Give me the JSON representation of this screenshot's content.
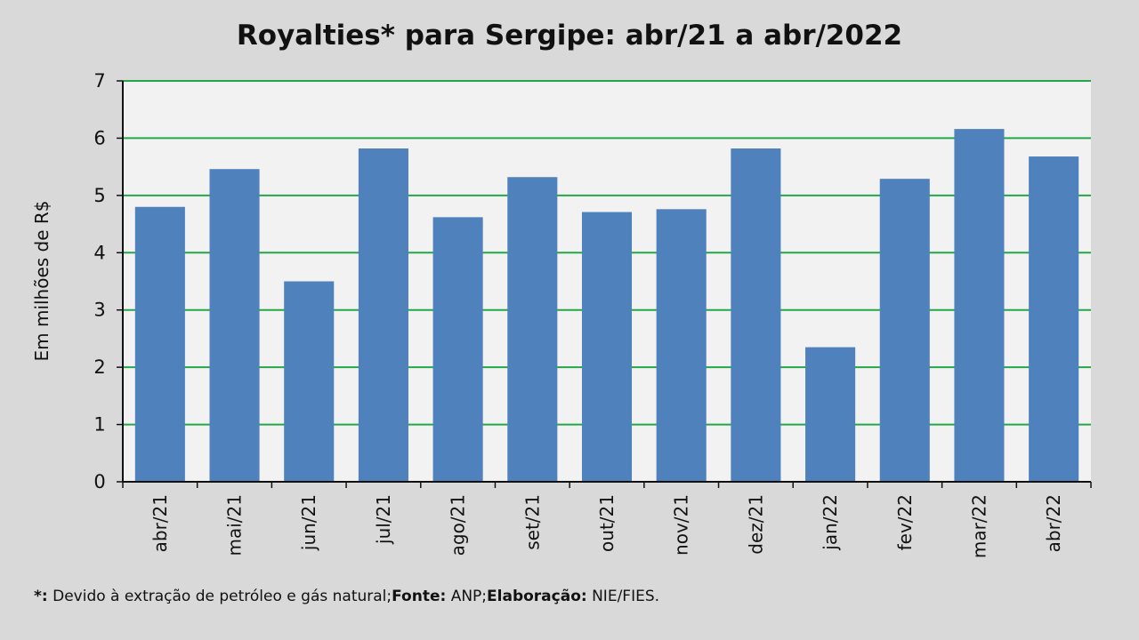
{
  "chart_data": {
    "type": "bar",
    "title": "Royalties* para Sergipe: abr/21 a abr/2022",
    "ylabel": "Em milhões de R$",
    "xlabel": "",
    "categories": [
      "abr/21",
      "mai/21",
      "jun/21",
      "jul/21",
      "ago/21",
      "set/21",
      "out/21",
      "nov/21",
      "dez/21",
      "jan/22",
      "fev/22",
      "mar/22",
      "abr/22"
    ],
    "values": [
      4.8,
      5.46,
      3.5,
      5.82,
      4.62,
      5.32,
      4.71,
      4.76,
      5.82,
      2.35,
      5.29,
      6.16,
      5.68
    ],
    "ylim": [
      0,
      7
    ],
    "yticks": [
      0,
      1,
      2,
      3,
      4,
      5,
      6,
      7
    ],
    "grid": true,
    "legend": "none"
  },
  "colors": {
    "bar": "#4f81bd",
    "grid": "#22a846",
    "plot_bg": "#f2f2f2",
    "page_bg": "#d9d9d9",
    "axis": "#111111"
  },
  "footnote": {
    "marker": "*:",
    "marker_text": " Devido à extração de petróleo e gás natural;",
    "source_label": "Fonte:",
    "source_text": " ANP;",
    "credit_label": "Elaboração:",
    "credit_text": " NIE/FIES."
  }
}
